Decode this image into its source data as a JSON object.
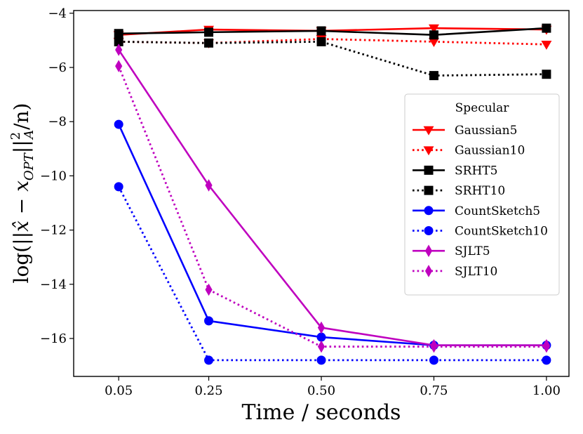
{
  "chart_data": {
    "type": "line",
    "title": "",
    "xlabel": "Time / seconds",
    "ylabel_parts": {
      "prefix": "log(||",
      "xhat": "x̂",
      "minus": " − ",
      "x": "x",
      "subscript": "OPT",
      "close": "||",
      "sup": "2",
      "sub_a": "A",
      "tail": "/n)"
    },
    "x": [
      0.05,
      0.25,
      0.5,
      0.75,
      1.0
    ],
    "x_tick_labels": [
      "0.05",
      "0.25",
      "0.50",
      "0.75",
      "1.00"
    ],
    "y_ticks": [
      -16,
      -14,
      -12,
      -10,
      -8,
      -6,
      -4
    ],
    "y_tick_labels": [
      "−16",
      "−14",
      "−12",
      "−10",
      "−8",
      "−6",
      "−4"
    ],
    "ylim": [
      -17.4,
      -3.9
    ],
    "xlim": [
      -0.05,
      1.05
    ],
    "grid": false,
    "legend": {
      "title": "Specular",
      "position": "center-right"
    },
    "series": [
      {
        "name": "Gaussian5",
        "color": "#ff0000",
        "linestyle": "solid",
        "marker": "triangle-down",
        "values": [
          -4.8,
          -4.6,
          -4.65,
          -4.55,
          -4.6
        ]
      },
      {
        "name": "Gaussian10",
        "color": "#ff0000",
        "linestyle": "dotted",
        "marker": "triangle-down",
        "values": [
          -5.05,
          -5.1,
          -4.95,
          -5.05,
          -5.15
        ]
      },
      {
        "name": "SRHT5",
        "color": "#000000",
        "linestyle": "solid",
        "marker": "square",
        "values": [
          -4.75,
          -4.7,
          -4.65,
          -4.8,
          -4.55
        ]
      },
      {
        "name": "SRHT10",
        "color": "#000000",
        "linestyle": "dotted",
        "marker": "square",
        "values": [
          -5.05,
          -5.1,
          -5.05,
          -6.3,
          -6.25
        ]
      },
      {
        "name": "CountSketch5",
        "color": "#0000ff",
        "linestyle": "solid",
        "marker": "circle",
        "values": [
          -8.1,
          -15.35,
          -15.95,
          -16.25,
          -16.25
        ]
      },
      {
        "name": "CountSketch10",
        "color": "#0000ff",
        "linestyle": "dotted",
        "marker": "circle",
        "values": [
          -10.4,
          -16.8,
          -16.8,
          -16.8,
          -16.8
        ]
      },
      {
        "name": "SJLT5",
        "color": "#bf00bf",
        "linestyle": "solid",
        "marker": "diamond",
        "values": [
          -5.35,
          -10.35,
          -15.6,
          -16.25,
          -16.25
        ]
      },
      {
        "name": "SJLT10",
        "color": "#bf00bf",
        "linestyle": "dotted",
        "marker": "diamond",
        "values": [
          -5.95,
          -14.2,
          -16.3,
          -16.3,
          -16.3
        ]
      }
    ]
  }
}
